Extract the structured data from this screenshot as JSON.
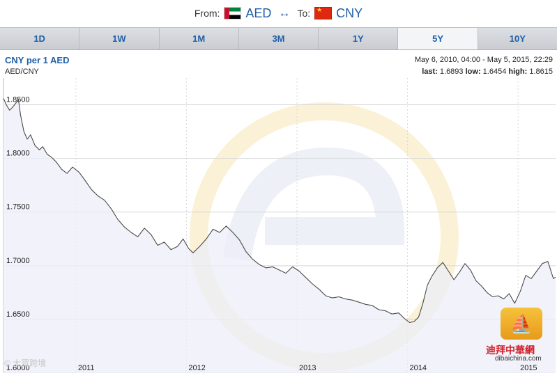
{
  "header": {
    "from_label": "From:",
    "from_currency": "AED",
    "swap_symbol": "↔",
    "to_label": "To:",
    "to_currency": "CNY",
    "from_flag_icon": "uae-flag-icon",
    "to_flag_icon": "china-flag-icon"
  },
  "tabs": [
    {
      "label": "1D",
      "active": false
    },
    {
      "label": "1W",
      "active": false
    },
    {
      "label": "1M",
      "active": false
    },
    {
      "label": "3M",
      "active": false
    },
    {
      "label": "1Y",
      "active": false
    },
    {
      "label": "5Y",
      "active": true
    },
    {
      "label": "10Y",
      "active": false
    }
  ],
  "info": {
    "title": "CNY per 1 AED",
    "subtitle": "AED/CNY",
    "range": "May 6, 2010, 04:00 - May 5, 2015, 22:29",
    "last_label": "last:",
    "last_value": "1.6893",
    "low_label": "low:",
    "low_value": "1.6454",
    "high_label": "high:",
    "high_value": "1.8615"
  },
  "watermark": {
    "left_text": "© 大眾跨境",
    "logo_cn": "迪拜中華網",
    "logo_url": "dibaichina.com"
  },
  "colors": {
    "line": "#4a4a4a",
    "fill": "#eceef8",
    "grid": "#d8d8d8",
    "accent": "#1f5fa8"
  },
  "chart_data": {
    "type": "area",
    "title": "CNY per 1 AED",
    "ylabel": "AED/CNY",
    "ylim": [
      1.6,
      1.875
    ],
    "xlim": [
      2010.345,
      2015.34
    ],
    "yticks": [
      "1.6000",
      "1.6500",
      "1.7000",
      "1.7500",
      "1.8000",
      "1.8500"
    ],
    "ytick_values": [
      1.6,
      1.65,
      1.7,
      1.75,
      1.8,
      1.85
    ],
    "xticks": [
      "2011",
      "2012",
      "2013",
      "2014",
      "2015"
    ],
    "xtick_values": [
      2011,
      2012,
      2013,
      2014,
      2015
    ],
    "grid": true,
    "series": [
      {
        "x": [
          2010.345,
          2010.37,
          2010.4,
          2010.43,
          2010.46,
          2010.48,
          2010.5,
          2010.53,
          2010.56,
          2010.59,
          2010.63,
          2010.67,
          2010.7,
          2010.74,
          2010.78,
          2010.82,
          2010.87,
          2010.92,
          2010.97,
          2011.03,
          2011.08,
          2011.14,
          2011.2,
          2011.26,
          2011.32,
          2011.38,
          2011.44,
          2011.5,
          2011.56,
          2011.62,
          2011.68,
          2011.74,
          2011.8,
          2011.86,
          2011.92,
          2011.97,
          2012.02,
          2012.06,
          2012.12,
          2012.18,
          2012.24,
          2012.3,
          2012.36,
          2012.42,
          2012.48,
          2012.54,
          2012.6,
          2012.66,
          2012.72,
          2012.78,
          2012.84,
          2012.9,
          2012.96,
          2013.02,
          2013.08,
          2013.14,
          2013.2,
          2013.26,
          2013.32,
          2013.38,
          2013.44,
          2013.5,
          2013.56,
          2013.62,
          2013.68,
          2013.74,
          2013.8,
          2013.86,
          2013.92,
          2013.97,
          2014.02,
          2014.06,
          2014.1,
          2014.14,
          2014.18,
          2014.22,
          2014.27,
          2014.32,
          2014.37,
          2014.42,
          2014.47,
          2014.52,
          2014.57,
          2014.62,
          2014.67,
          2014.72,
          2014.77,
          2014.82,
          2014.87,
          2014.92,
          2014.97,
          2015.02,
          2015.07,
          2015.12,
          2015.17,
          2015.22,
          2015.27,
          2015.32,
          2015.34
        ],
        "values": [
          1.856,
          1.85,
          1.845,
          1.848,
          1.852,
          1.855,
          1.84,
          1.825,
          1.818,
          1.822,
          1.812,
          1.808,
          1.811,
          1.804,
          1.801,
          1.797,
          1.79,
          1.786,
          1.792,
          1.787,
          1.78,
          1.771,
          1.765,
          1.761,
          1.753,
          1.743,
          1.736,
          1.731,
          1.727,
          1.735,
          1.729,
          1.719,
          1.722,
          1.715,
          1.718,
          1.725,
          1.716,
          1.712,
          1.718,
          1.725,
          1.734,
          1.731,
          1.737,
          1.731,
          1.724,
          1.713,
          1.706,
          1.701,
          1.698,
          1.699,
          1.696,
          1.693,
          1.699,
          1.695,
          1.689,
          1.683,
          1.678,
          1.672,
          1.67,
          1.671,
          1.669,
          1.668,
          1.666,
          1.664,
          1.663,
          1.659,
          1.658,
          1.655,
          1.656,
          1.651,
          1.647,
          1.648,
          1.652,
          1.665,
          1.682,
          1.69,
          1.698,
          1.703,
          1.695,
          1.687,
          1.694,
          1.702,
          1.696,
          1.686,
          1.681,
          1.675,
          1.671,
          1.672,
          1.669,
          1.674,
          1.665,
          1.676,
          1.691,
          1.688,
          1.695,
          1.702,
          1.704,
          1.688,
          1.6893
        ]
      }
    ]
  }
}
